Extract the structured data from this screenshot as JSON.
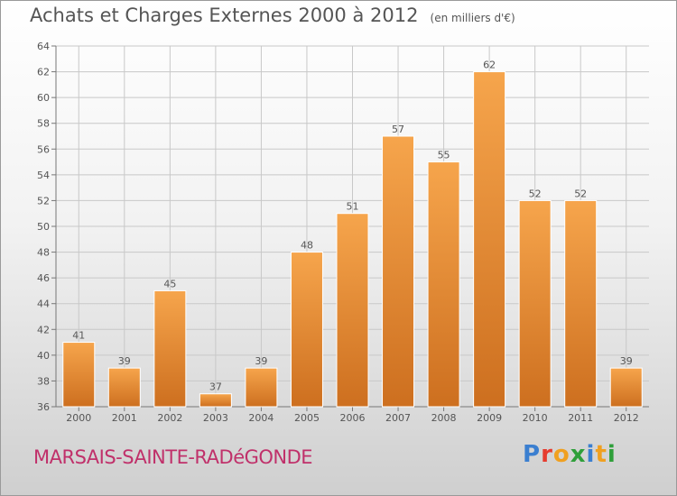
{
  "title": "Achats et Charges Externes 2000 à 2012",
  "subtitle": "(en milliers d'€)",
  "commune": "MARSAIS-SAINTE-RADéGONDE",
  "logo": {
    "text": "Proxiti",
    "letter_colors": [
      "#3b7fd0",
      "#e63b2e",
      "#f0a020",
      "#2f9f3a",
      "#3b7fd0",
      "#f0a020",
      "#2f9f3a"
    ]
  },
  "colors": {
    "bar_top": "#f6a54c",
    "bar_bottom": "#cd6f1f",
    "grid": "#c8c8c8",
    "text": "#555555"
  },
  "chart_data": {
    "type": "bar",
    "categories": [
      "2000",
      "2001",
      "2002",
      "2003",
      "2004",
      "2005",
      "2006",
      "2007",
      "2008",
      "2009",
      "2010",
      "2011",
      "2012"
    ],
    "values": [
      41,
      39,
      45,
      37,
      39,
      48,
      51,
      57,
      55,
      62,
      52,
      52,
      39
    ],
    "data_labels": [
      "41",
      "39",
      "45",
      "37",
      "39",
      "48",
      "51",
      "57",
      "55",
      "62",
      "52",
      "52",
      "39"
    ],
    "ylim": [
      36,
      64
    ],
    "yticks": [
      "36",
      "38",
      "40",
      "42",
      "44",
      "46",
      "48",
      "50",
      "52",
      "54",
      "56",
      "58",
      "60",
      "62",
      "64"
    ],
    "grid": true
  }
}
